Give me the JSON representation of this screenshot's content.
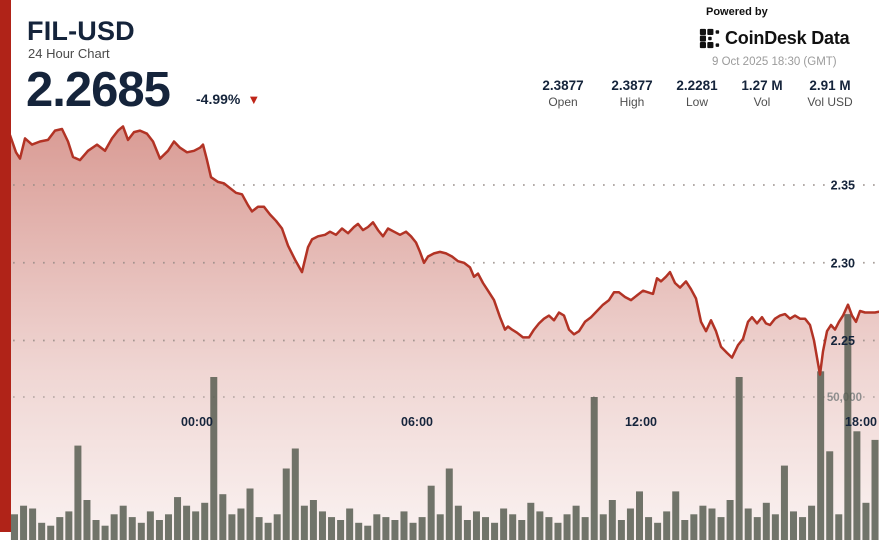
{
  "header": {
    "symbol": "FIL-USD",
    "subtitle": "24 Hour Chart",
    "price": "2.2685",
    "change": "-4.99%",
    "change_direction": "down",
    "change_arrow": "▼"
  },
  "powered_by": {
    "label": "Powered by",
    "brand": "CoinDesk Data",
    "timestamp": "9 Oct 2025 18:30 (GMT)"
  },
  "stats": [
    {
      "value": "2.3877",
      "label": "Open"
    },
    {
      "value": "2.3877",
      "label": "High"
    },
    {
      "value": "2.2281",
      "label": "Low"
    },
    {
      "value": "1.27 M",
      "label": "Vol"
    },
    {
      "value": "2.91 M",
      "label": "Vol USD"
    }
  ],
  "colors": {
    "accent_red": "#b02318",
    "line_red": "#b23325",
    "volume_bar": "#565c50",
    "text_navy": "#15243b",
    "grid_dot": "#958a85"
  },
  "chart_data": {
    "type": "line+bar",
    "title": "FIL-USD 24 Hour Chart",
    "legend": "none",
    "grid": "dotted-horizontal",
    "x_axis": {
      "labels": [
        "00:00",
        "06:00",
        "12:00",
        "18:00"
      ],
      "positions": [
        197,
        417,
        641,
        861
      ]
    },
    "y_axis_price": {
      "side": "right",
      "labels": [
        "2.35",
        "2.30",
        "2.25"
      ],
      "values": [
        2.35,
        2.3,
        2.25
      ],
      "range_shown": [
        2.21,
        2.4
      ]
    },
    "y_axis_volume": {
      "label": "50,000",
      "value": 50000
    },
    "price_series": [
      [
        10,
        2.382
      ],
      [
        16,
        2.371
      ],
      [
        20,
        2.367
      ],
      [
        25,
        2.38
      ],
      [
        32,
        2.376
      ],
      [
        40,
        2.378
      ],
      [
        48,
        2.379
      ],
      [
        55,
        2.385
      ],
      [
        62,
        2.386
      ],
      [
        68,
        2.378
      ],
      [
        73,
        2.368
      ],
      [
        80,
        2.366
      ],
      [
        88,
        2.372
      ],
      [
        97,
        2.376
      ],
      [
        105,
        2.372
      ],
      [
        112,
        2.38
      ],
      [
        118,
        2.385
      ],
      [
        123,
        2.3877
      ],
      [
        128,
        2.379
      ],
      [
        134,
        2.384
      ],
      [
        140,
        2.385
      ],
      [
        147,
        2.383
      ],
      [
        153,
        2.378
      ],
      [
        160,
        2.367
      ],
      [
        168,
        2.372
      ],
      [
        174,
        2.378
      ],
      [
        180,
        2.374
      ],
      [
        187,
        2.371
      ],
      [
        194,
        2.372
      ],
      [
        200,
        2.374
      ],
      [
        203,
        2.376
      ],
      [
        207,
        2.366
      ],
      [
        211,
        2.355
      ],
      [
        218,
        2.352
      ],
      [
        224,
        2.351
      ],
      [
        230,
        2.348
      ],
      [
        236,
        2.345
      ],
      [
        242,
        2.344
      ],
      [
        248,
        2.337
      ],
      [
        252,
        2.333
      ],
      [
        258,
        2.336
      ],
      [
        264,
        2.336
      ],
      [
        270,
        2.331
      ],
      [
        276,
        2.327
      ],
      [
        282,
        2.322
      ],
      [
        288,
        2.311
      ],
      [
        295,
        2.302
      ],
      [
        302,
        2.294
      ],
      [
        308,
        2.31
      ],
      [
        312,
        2.315
      ],
      [
        318,
        2.317
      ],
      [
        325,
        2.318
      ],
      [
        330,
        2.32
      ],
      [
        336,
        2.318
      ],
      [
        342,
        2.322
      ],
      [
        348,
        2.319
      ],
      [
        354,
        2.323
      ],
      [
        358,
        2.325
      ],
      [
        363,
        2.321
      ],
      [
        368,
        2.323
      ],
      [
        373,
        2.326
      ],
      [
        378,
        2.321
      ],
      [
        383,
        2.317
      ],
      [
        388,
        2.322
      ],
      [
        394,
        2.32
      ],
      [
        400,
        2.318
      ],
      [
        406,
        2.32
      ],
      [
        411,
        2.317
      ],
      [
        416,
        2.313
      ],
      [
        420,
        2.307
      ],
      [
        424,
        2.3
      ],
      [
        428,
        2.304
      ],
      [
        434,
        2.306
      ],
      [
        440,
        2.307
      ],
      [
        446,
        2.306
      ],
      [
        452,
        2.304
      ],
      [
        458,
        2.301
      ],
      [
        464,
        2.3
      ],
      [
        470,
        2.297
      ],
      [
        474,
        2.291
      ],
      [
        478,
        2.293
      ],
      [
        483,
        2.287
      ],
      [
        488,
        2.282
      ],
      [
        494,
        2.276
      ],
      [
        500,
        2.265
      ],
      [
        505,
        2.257
      ],
      [
        508,
        2.259
      ],
      [
        512,
        2.257
      ],
      [
        517,
        2.255
      ],
      [
        523,
        2.252
      ],
      [
        529,
        2.252
      ],
      [
        534,
        2.257
      ],
      [
        539,
        2.261
      ],
      [
        544,
        2.264
      ],
      [
        549,
        2.266
      ],
      [
        554,
        2.263
      ],
      [
        559,
        2.268
      ],
      [
        564,
        2.266
      ],
      [
        569,
        2.257
      ],
      [
        574,
        2.254
      ],
      [
        579,
        2.256
      ],
      [
        585,
        2.262
      ],
      [
        591,
        2.265
      ],
      [
        597,
        2.269
      ],
      [
        603,
        2.273
      ],
      [
        609,
        2.276
      ],
      [
        614,
        2.281
      ],
      [
        619,
        2.281
      ],
      [
        625,
        2.278
      ],
      [
        631,
        2.276
      ],
      [
        637,
        2.279
      ],
      [
        643,
        2.282
      ],
      [
        648,
        2.281
      ],
      [
        653,
        2.28
      ],
      [
        657,
        2.29
      ],
      [
        661,
        2.288
      ],
      [
        666,
        2.291
      ],
      [
        670,
        2.294
      ],
      [
        675,
        2.287
      ],
      [
        680,
        2.284
      ],
      [
        686,
        2.288
      ],
      [
        691,
        2.283
      ],
      [
        696,
        2.277
      ],
      [
        701,
        2.262
      ],
      [
        706,
        2.256
      ],
      [
        711,
        2.263
      ],
      [
        716,
        2.256
      ],
      [
        721,
        2.246
      ],
      [
        727,
        2.242
      ],
      [
        732,
        2.239
      ],
      [
        738,
        2.247
      ],
      [
        743,
        2.251
      ],
      [
        748,
        2.262
      ],
      [
        752,
        2.265
      ],
      [
        757,
        2.261
      ],
      [
        762,
        2.265
      ],
      [
        766,
        2.261
      ],
      [
        770,
        2.26
      ],
      [
        775,
        2.264
      ],
      [
        780,
        2.266
      ],
      [
        785,
        2.267
      ],
      [
        790,
        2.264
      ],
      [
        795,
        2.266
      ],
      [
        800,
        2.264
      ],
      [
        805,
        2.264
      ],
      [
        810,
        2.26
      ],
      [
        814,
        2.25
      ],
      [
        817,
        2.239
      ],
      [
        820,
        2.2281
      ],
      [
        823,
        2.243
      ],
      [
        827,
        2.256
      ],
      [
        831,
        2.26
      ],
      [
        835,
        2.257
      ],
      [
        839,
        2.262
      ],
      [
        843,
        2.266
      ],
      [
        848,
        2.273
      ],
      [
        852,
        2.266
      ],
      [
        856,
        2.262
      ],
      [
        860,
        2.269
      ],
      [
        865,
        2.268
      ],
      [
        870,
        2.268
      ],
      [
        875,
        2.268
      ],
      [
        879,
        2.2685
      ]
    ],
    "volume_series": [
      9000,
      12000,
      11000,
      6000,
      5000,
      8000,
      10000,
      33000,
      14000,
      7000,
      5000,
      9000,
      12000,
      8000,
      6000,
      10000,
      7000,
      9000,
      15000,
      12000,
      10000,
      13000,
      57000,
      16000,
      9000,
      11000,
      18000,
      8000,
      6000,
      9000,
      25000,
      32000,
      12000,
      14000,
      10000,
      8000,
      7000,
      11000,
      6000,
      5000,
      9000,
      8000,
      7000,
      10000,
      6000,
      8000,
      19000,
      9000,
      25000,
      12000,
      7000,
      10000,
      8000,
      6000,
      11000,
      9000,
      7000,
      13000,
      10000,
      8000,
      6000,
      9000,
      12000,
      8000,
      50000,
      9000,
      14000,
      7000,
      11000,
      17000,
      8000,
      6000,
      10000,
      17000,
      7000,
      9000,
      12000,
      11000,
      8000,
      14000,
      57000,
      11000,
      8000,
      13000,
      9000,
      26000,
      10000,
      8000,
      12000,
      59000,
      31000,
      9000,
      79000,
      38000,
      13000,
      35000
    ]
  }
}
